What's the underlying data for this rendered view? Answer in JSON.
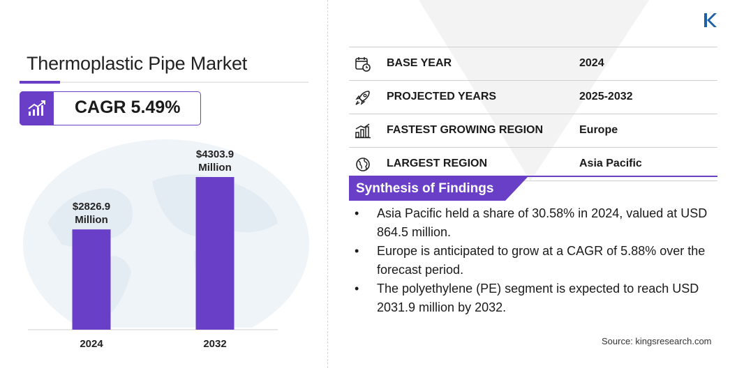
{
  "header": {
    "title": "Thermoplastic Pipe Market",
    "cagr_label": "CAGR 5.49%"
  },
  "chart_data": {
    "type": "bar",
    "categories": [
      "2024",
      "2032"
    ],
    "values": [
      2826.9,
      4303.9
    ],
    "data_labels": [
      [
        "$2826.9",
        "Million"
      ],
      [
        "$4303.9",
        "Million"
      ]
    ],
    "unit": "USD Million",
    "bar_color": "#6a3fc8",
    "ylim": [
      0,
      4303.9
    ],
    "title": "",
    "xlabel": "",
    "ylabel": "",
    "grid": false
  },
  "info_rows": [
    {
      "icon": "calendar-clock-icon",
      "label": "BASE YEAR",
      "value": "2024"
    },
    {
      "icon": "rocket-icon",
      "label": "PROJECTED YEARS",
      "value": "2025-2032"
    },
    {
      "icon": "growth-region-icon",
      "label": "FASTEST GROWING REGION",
      "value": "Europe"
    },
    {
      "icon": "globe-icon",
      "label": "LARGEST REGION",
      "value": "Asia Pacific"
    }
  ],
  "synthesis": {
    "title": "Synthesis of Findings",
    "bullet": "•",
    "items": [
      "Asia Pacific held a share of 30.58% in 2024, valued at USD 864.5 million.",
      "Europe is anticipated to grow at a CAGR of 5.88% over the forecast period.",
      "The polyethylene (PE) segment is expected to reach USD 2031.9 million by 2032."
    ]
  },
  "footer": {
    "source": "Source:  kingsresearch.com"
  },
  "colors": {
    "accent": "#6a3fc8",
    "text": "#1a1a1a",
    "divider": "#cfcfcf"
  }
}
